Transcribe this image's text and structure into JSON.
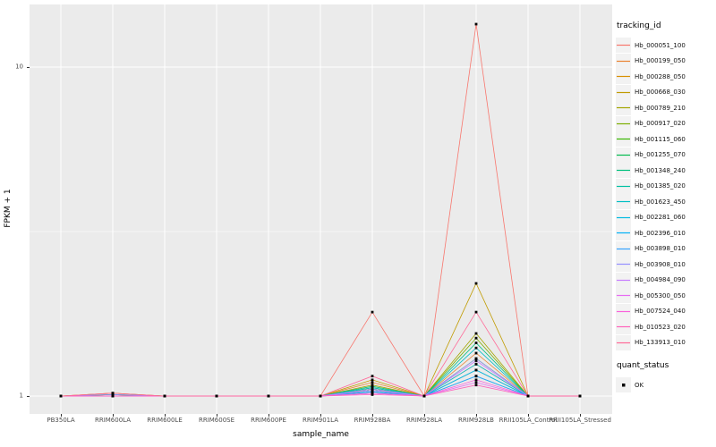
{
  "chart_data": {
    "type": "line",
    "title": "",
    "xlabel": "sample_name",
    "ylabel": "FPKM + 1",
    "y_scale": "log10",
    "y_ticks": [
      1,
      10
    ],
    "ylim": [
      0.9,
      15.5
    ],
    "grid": "on",
    "legend_position": "right",
    "panel_background": "#EBEBEB",
    "gridline_color": "#FFFFFF",
    "point_color": "#000000",
    "point_shape": "square",
    "categories": [
      "PB350LA",
      "RRIM600LA",
      "RRIM600LE",
      "RRIM600SE",
      "RRIM600PE",
      "RRIM901LA",
      "RRIM928BA",
      "RRIM928LA",
      "RRIM928LB",
      "RRII105LA_Control",
      "RRII105LA_Stressed"
    ],
    "series": [
      {
        "name": "Hb_000051_100",
        "color": "#F8766D",
        "values": [
          1,
          1.02,
          1,
          1,
          1,
          1,
          1.8,
          1,
          13.5,
          1,
          1
        ]
      },
      {
        "name": "Hb_000199_050",
        "color": "#EA8331",
        "values": [
          1,
          1.01,
          1,
          1,
          1,
          1,
          1.1,
          1,
          1.35,
          1,
          1
        ]
      },
      {
        "name": "Hb_000288_050",
        "color": "#D89000",
        "values": [
          1,
          1,
          1,
          1,
          1,
          1,
          1.05,
          1,
          1.25,
          1,
          1
        ]
      },
      {
        "name": "Hb_000668_030",
        "color": "#C09B00",
        "values": [
          1,
          1.02,
          1,
          1,
          1,
          1,
          1.12,
          1,
          2.2,
          1,
          1
        ]
      },
      {
        "name": "Hb_000789_210",
        "color": "#A3A500",
        "values": [
          1,
          1,
          1,
          1,
          1,
          1,
          1.08,
          1,
          1.55,
          1,
          1
        ]
      },
      {
        "name": "Hb_000917_020",
        "color": "#7CAE00",
        "values": [
          1,
          1.01,
          1,
          1,
          1,
          1,
          1.06,
          1,
          1.5,
          1,
          1
        ]
      },
      {
        "name": "Hb_001115_060",
        "color": "#39B600",
        "values": [
          1,
          1,
          1,
          1,
          1,
          1,
          1.05,
          1,
          1.3,
          1,
          1
        ]
      },
      {
        "name": "Hb_001255_070",
        "color": "#00BB4E",
        "values": [
          1,
          1,
          1,
          1,
          1,
          1,
          1.04,
          1,
          1.2,
          1,
          1
        ]
      },
      {
        "name": "Hb_001348_240",
        "color": "#00BF7D",
        "values": [
          1,
          1.01,
          1,
          1,
          1,
          1,
          1.07,
          1,
          1.45,
          1,
          1
        ]
      },
      {
        "name": "Hb_001385_020",
        "color": "#00C1A3",
        "values": [
          1,
          1,
          1,
          1,
          1,
          1,
          1.03,
          1,
          1.15,
          1,
          1
        ]
      },
      {
        "name": "Hb_001623_450",
        "color": "#00BFC4",
        "values": [
          1,
          1,
          1,
          1,
          1,
          1,
          1.06,
          1,
          1.4,
          1,
          1
        ]
      },
      {
        "name": "Hb_002281_060",
        "color": "#00BAE0",
        "values": [
          1,
          1,
          1,
          1,
          1,
          1,
          1.04,
          1,
          1.25,
          1,
          1
        ]
      },
      {
        "name": "Hb_002396_010",
        "color": "#00B0F6",
        "values": [
          1,
          1,
          1,
          1,
          1,
          1,
          1.03,
          1,
          1.2,
          1,
          1
        ]
      },
      {
        "name": "Hb_003898_010",
        "color": "#35A2FF",
        "values": [
          1,
          1,
          1,
          1,
          1,
          1,
          1.02,
          1,
          1.15,
          1,
          1
        ]
      },
      {
        "name": "Hb_003908_010",
        "color": "#9590FF",
        "values": [
          1,
          1.01,
          1,
          1,
          1,
          1,
          1.05,
          1,
          1.3,
          1,
          1
        ]
      },
      {
        "name": "Hb_004984_090",
        "color": "#C77CFF",
        "values": [
          1,
          1,
          1,
          1,
          1,
          1,
          1.04,
          1,
          1.28,
          1,
          1
        ]
      },
      {
        "name": "Hb_005300_050",
        "color": "#E76BF3",
        "values": [
          1,
          1,
          1,
          1,
          1,
          1,
          1.02,
          1,
          1.1,
          1,
          1
        ]
      },
      {
        "name": "Hb_007524_040",
        "color": "#FA62DB",
        "values": [
          1,
          1,
          1,
          1,
          1,
          1,
          1.02,
          1,
          1.12,
          1,
          1
        ]
      },
      {
        "name": "Hb_010523_020",
        "color": "#FF62BC",
        "values": [
          1,
          1,
          1,
          1,
          1,
          1,
          1.01,
          1,
          1.08,
          1,
          1
        ]
      },
      {
        "name": "Hb_133913_010",
        "color": "#FF6A98",
        "values": [
          1,
          1.02,
          1,
          1,
          1,
          1,
          1.15,
          1,
          1.8,
          1,
          1
        ]
      }
    ],
    "legend": {
      "color_title": "tracking_id",
      "shape_title": "quant_status",
      "shape_items": [
        {
          "label": "OK",
          "color": "#000000",
          "shape": "square"
        }
      ]
    }
  }
}
